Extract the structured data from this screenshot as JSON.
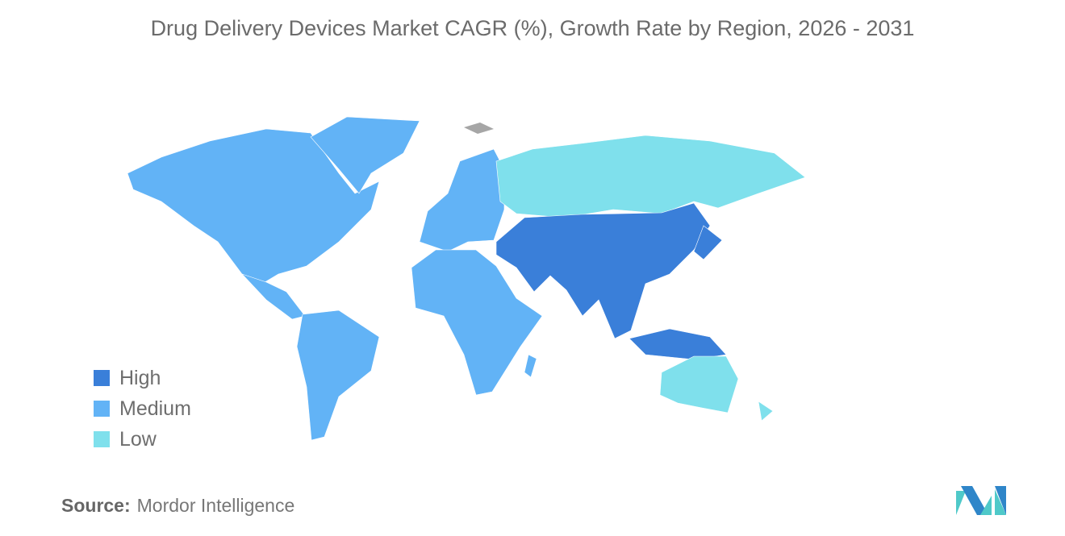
{
  "title": "Drug Delivery Devices Market CAGR (%), Growth Rate by Region, 2026 - 2031",
  "legend": [
    {
      "label": "High",
      "color": "#3a7fd9"
    },
    {
      "label": "Medium",
      "color": "#62b3f6"
    },
    {
      "label": "Low",
      "color": "#7fe0ec"
    }
  ],
  "regions": {
    "north_america": "Medium",
    "south_america": "Medium",
    "europe": "Medium",
    "africa": "Medium",
    "russia": "Low",
    "asia_middle_east": "High",
    "southeast_asia": "High",
    "japan": "High",
    "australia_new_zealand": "Low"
  },
  "no_data_color": "#a6a6a6",
  "source": {
    "label": "Source:",
    "value": "Mordor Intelligence"
  }
}
